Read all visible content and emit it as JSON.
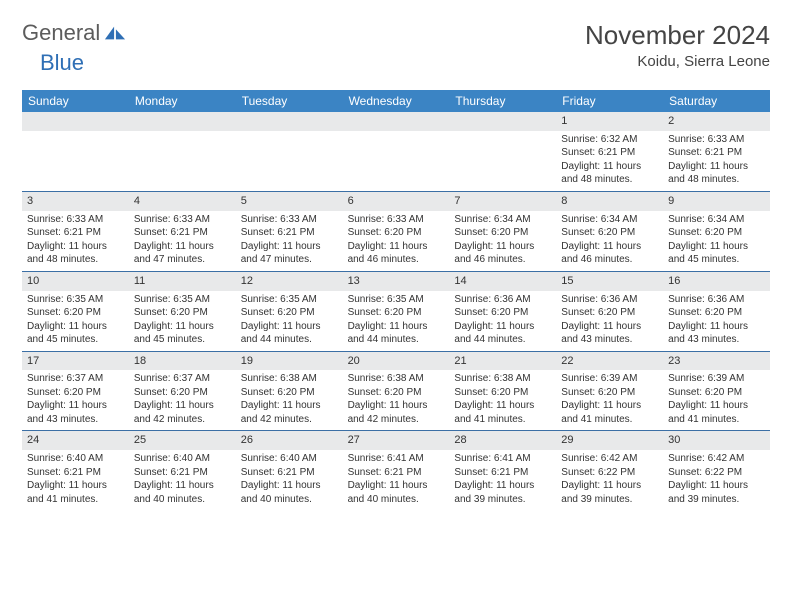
{
  "brand": {
    "part1": "General",
    "part2": "Blue"
  },
  "title": "November 2024",
  "location": "Koidu, Sierra Leone",
  "weekdays": [
    "Sunday",
    "Monday",
    "Tuesday",
    "Wednesday",
    "Thursday",
    "Friday",
    "Saturday"
  ],
  "colors": {
    "header_bg": "#3b84c4",
    "header_text": "#ffffff",
    "row_divider": "#3b6fa5",
    "daynum_bg": "#e8e9ea",
    "text": "#333333",
    "brand_gray": "#5c5c5c",
    "brand_blue": "#2f6fb5"
  },
  "fonts": {
    "title_size": 26,
    "location_size": 15,
    "weekday_size": 12,
    "daynum_size": 11,
    "body_size": 10
  },
  "weeks": [
    [
      {
        "n": "",
        "sunrise": "",
        "sunset": "",
        "daylight": ""
      },
      {
        "n": "",
        "sunrise": "",
        "sunset": "",
        "daylight": ""
      },
      {
        "n": "",
        "sunrise": "",
        "sunset": "",
        "daylight": ""
      },
      {
        "n": "",
        "sunrise": "",
        "sunset": "",
        "daylight": ""
      },
      {
        "n": "",
        "sunrise": "",
        "sunset": "",
        "daylight": ""
      },
      {
        "n": "1",
        "sunrise": "Sunrise: 6:32 AM",
        "sunset": "Sunset: 6:21 PM",
        "daylight": "Daylight: 11 hours and 48 minutes."
      },
      {
        "n": "2",
        "sunrise": "Sunrise: 6:33 AM",
        "sunset": "Sunset: 6:21 PM",
        "daylight": "Daylight: 11 hours and 48 minutes."
      }
    ],
    [
      {
        "n": "3",
        "sunrise": "Sunrise: 6:33 AM",
        "sunset": "Sunset: 6:21 PM",
        "daylight": "Daylight: 11 hours and 48 minutes."
      },
      {
        "n": "4",
        "sunrise": "Sunrise: 6:33 AM",
        "sunset": "Sunset: 6:21 PM",
        "daylight": "Daylight: 11 hours and 47 minutes."
      },
      {
        "n": "5",
        "sunrise": "Sunrise: 6:33 AM",
        "sunset": "Sunset: 6:21 PM",
        "daylight": "Daylight: 11 hours and 47 minutes."
      },
      {
        "n": "6",
        "sunrise": "Sunrise: 6:33 AM",
        "sunset": "Sunset: 6:20 PM",
        "daylight": "Daylight: 11 hours and 46 minutes."
      },
      {
        "n": "7",
        "sunrise": "Sunrise: 6:34 AM",
        "sunset": "Sunset: 6:20 PM",
        "daylight": "Daylight: 11 hours and 46 minutes."
      },
      {
        "n": "8",
        "sunrise": "Sunrise: 6:34 AM",
        "sunset": "Sunset: 6:20 PM",
        "daylight": "Daylight: 11 hours and 46 minutes."
      },
      {
        "n": "9",
        "sunrise": "Sunrise: 6:34 AM",
        "sunset": "Sunset: 6:20 PM",
        "daylight": "Daylight: 11 hours and 45 minutes."
      }
    ],
    [
      {
        "n": "10",
        "sunrise": "Sunrise: 6:35 AM",
        "sunset": "Sunset: 6:20 PM",
        "daylight": "Daylight: 11 hours and 45 minutes."
      },
      {
        "n": "11",
        "sunrise": "Sunrise: 6:35 AM",
        "sunset": "Sunset: 6:20 PM",
        "daylight": "Daylight: 11 hours and 45 minutes."
      },
      {
        "n": "12",
        "sunrise": "Sunrise: 6:35 AM",
        "sunset": "Sunset: 6:20 PM",
        "daylight": "Daylight: 11 hours and 44 minutes."
      },
      {
        "n": "13",
        "sunrise": "Sunrise: 6:35 AM",
        "sunset": "Sunset: 6:20 PM",
        "daylight": "Daylight: 11 hours and 44 minutes."
      },
      {
        "n": "14",
        "sunrise": "Sunrise: 6:36 AM",
        "sunset": "Sunset: 6:20 PM",
        "daylight": "Daylight: 11 hours and 44 minutes."
      },
      {
        "n": "15",
        "sunrise": "Sunrise: 6:36 AM",
        "sunset": "Sunset: 6:20 PM",
        "daylight": "Daylight: 11 hours and 43 minutes."
      },
      {
        "n": "16",
        "sunrise": "Sunrise: 6:36 AM",
        "sunset": "Sunset: 6:20 PM",
        "daylight": "Daylight: 11 hours and 43 minutes."
      }
    ],
    [
      {
        "n": "17",
        "sunrise": "Sunrise: 6:37 AM",
        "sunset": "Sunset: 6:20 PM",
        "daylight": "Daylight: 11 hours and 43 minutes."
      },
      {
        "n": "18",
        "sunrise": "Sunrise: 6:37 AM",
        "sunset": "Sunset: 6:20 PM",
        "daylight": "Daylight: 11 hours and 42 minutes."
      },
      {
        "n": "19",
        "sunrise": "Sunrise: 6:38 AM",
        "sunset": "Sunset: 6:20 PM",
        "daylight": "Daylight: 11 hours and 42 minutes."
      },
      {
        "n": "20",
        "sunrise": "Sunrise: 6:38 AM",
        "sunset": "Sunset: 6:20 PM",
        "daylight": "Daylight: 11 hours and 42 minutes."
      },
      {
        "n": "21",
        "sunrise": "Sunrise: 6:38 AM",
        "sunset": "Sunset: 6:20 PM",
        "daylight": "Daylight: 11 hours and 41 minutes."
      },
      {
        "n": "22",
        "sunrise": "Sunrise: 6:39 AM",
        "sunset": "Sunset: 6:20 PM",
        "daylight": "Daylight: 11 hours and 41 minutes."
      },
      {
        "n": "23",
        "sunrise": "Sunrise: 6:39 AM",
        "sunset": "Sunset: 6:20 PM",
        "daylight": "Daylight: 11 hours and 41 minutes."
      }
    ],
    [
      {
        "n": "24",
        "sunrise": "Sunrise: 6:40 AM",
        "sunset": "Sunset: 6:21 PM",
        "daylight": "Daylight: 11 hours and 41 minutes."
      },
      {
        "n": "25",
        "sunrise": "Sunrise: 6:40 AM",
        "sunset": "Sunset: 6:21 PM",
        "daylight": "Daylight: 11 hours and 40 minutes."
      },
      {
        "n": "26",
        "sunrise": "Sunrise: 6:40 AM",
        "sunset": "Sunset: 6:21 PM",
        "daylight": "Daylight: 11 hours and 40 minutes."
      },
      {
        "n": "27",
        "sunrise": "Sunrise: 6:41 AM",
        "sunset": "Sunset: 6:21 PM",
        "daylight": "Daylight: 11 hours and 40 minutes."
      },
      {
        "n": "28",
        "sunrise": "Sunrise: 6:41 AM",
        "sunset": "Sunset: 6:21 PM",
        "daylight": "Daylight: 11 hours and 39 minutes."
      },
      {
        "n": "29",
        "sunrise": "Sunrise: 6:42 AM",
        "sunset": "Sunset: 6:22 PM",
        "daylight": "Daylight: 11 hours and 39 minutes."
      },
      {
        "n": "30",
        "sunrise": "Sunrise: 6:42 AM",
        "sunset": "Sunset: 6:22 PM",
        "daylight": "Daylight: 11 hours and 39 minutes."
      }
    ]
  ]
}
